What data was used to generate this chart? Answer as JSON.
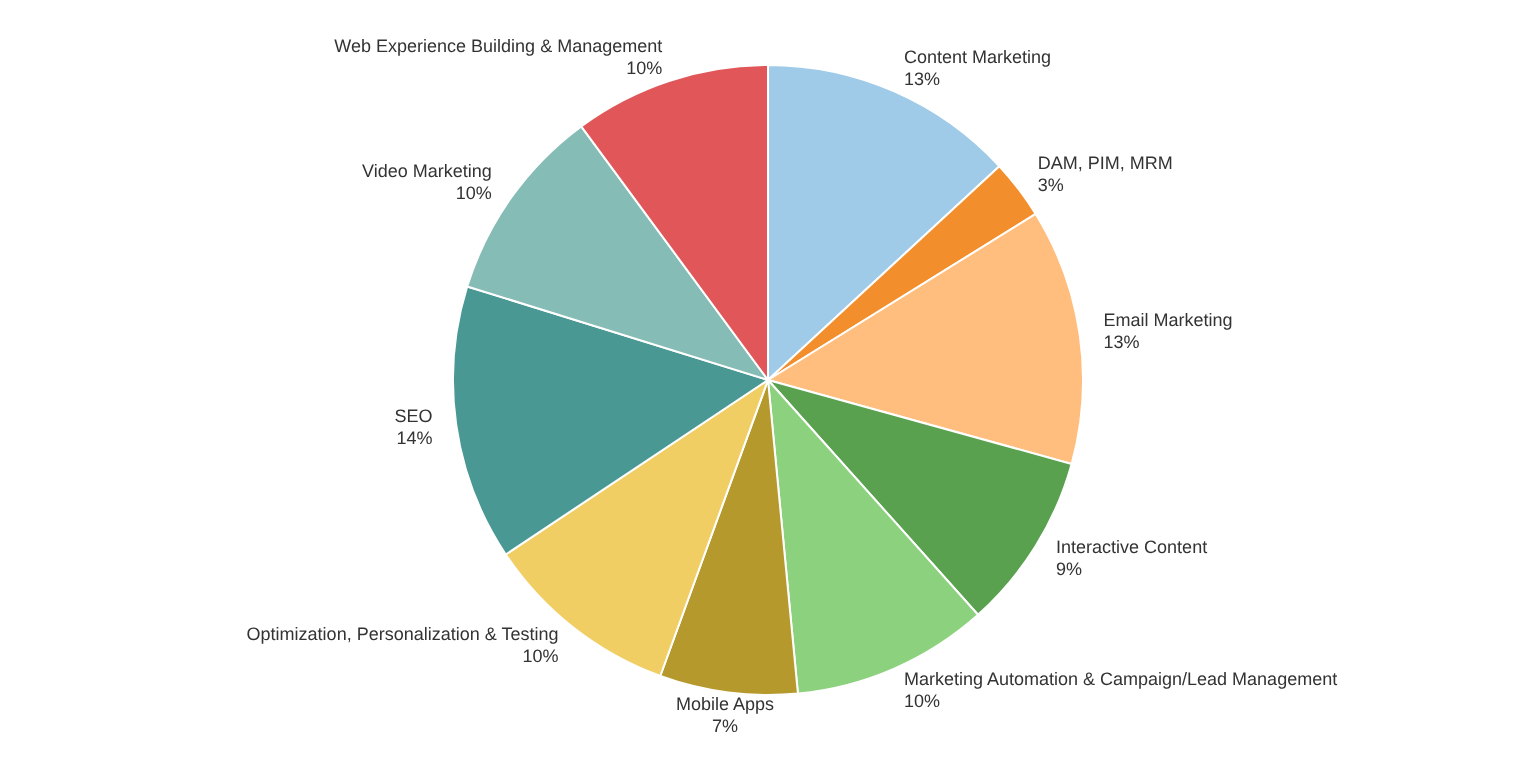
{
  "chart_data": {
    "type": "pie",
    "categories": [
      "Content Marketing",
      "DAM, PIM, MRM",
      "Email Marketing",
      "Interactive Content",
      "Marketing Automation & Campaign/Lead Management",
      "Mobile Apps",
      "Optimization, Personalization & Testing",
      "SEO",
      "Video Marketing",
      "Web Experience Building & Management"
    ],
    "values": [
      13,
      3,
      13,
      9,
      10,
      7,
      10,
      14,
      10,
      10
    ],
    "colors": [
      "#a0cbe8",
      "#f28e2b",
      "#ffbe7d",
      "#59a14f",
      "#8cd17d",
      "#b6992d",
      "#f1ce63",
      "#499894",
      "#86bcb6",
      "#e15759"
    ],
    "value_labels": [
      "13%",
      "3%",
      "13%",
      "9%",
      "10%",
      "7%",
      "10%",
      "14%",
      "10%",
      "10%"
    ],
    "legend": false
  }
}
